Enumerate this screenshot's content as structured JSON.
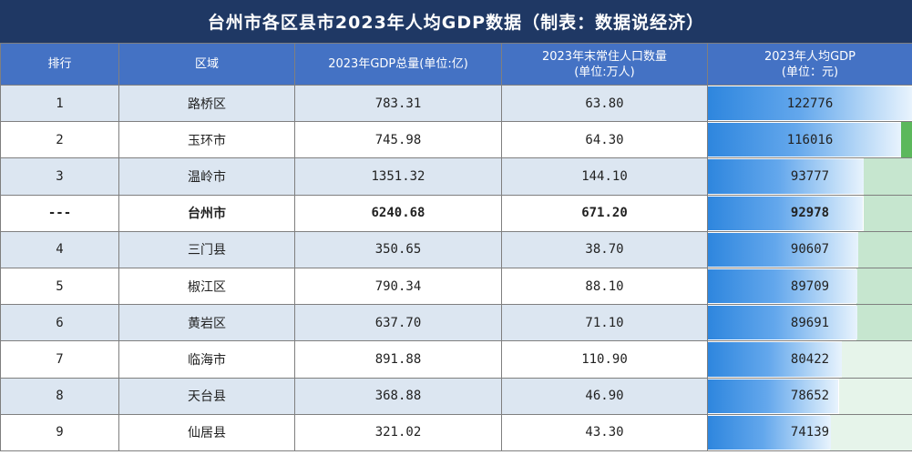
{
  "title": "台州市各区县市2023年人均GDP数据（制表：数据说经济）",
  "headers": {
    "rank": "排行",
    "region": "区域",
    "gdp": "2023年GDP总量(单位:亿)",
    "pop_line1": "2023年末常住人口数量",
    "pop_line2": "(单位:万人)",
    "pcgdp_line1": "2023年人均GDP",
    "pcgdp_line2": "(单位：元)"
  },
  "rows": [
    {
      "rank": "1",
      "region": "路桥区",
      "gdp": "783.31",
      "pop": "63.80",
      "pcgdp": "122776"
    },
    {
      "rank": "2",
      "region": "玉环市",
      "gdp": "745.98",
      "pop": "64.30",
      "pcgdp": "116016"
    },
    {
      "rank": "3",
      "region": "温岭市",
      "gdp": "1351.32",
      "pop": "144.10",
      "pcgdp": "93777"
    },
    {
      "rank": "---",
      "region": "台州市",
      "gdp": "6240.68",
      "pop": "671.20",
      "pcgdp": "92978"
    },
    {
      "rank": "4",
      "region": "三门县",
      "gdp": "350.65",
      "pop": "38.70",
      "pcgdp": "90607"
    },
    {
      "rank": "5",
      "region": "椒江区",
      "gdp": "790.34",
      "pop": "88.10",
      "pcgdp": "89709"
    },
    {
      "rank": "6",
      "region": "黄岩区",
      "gdp": "637.70",
      "pop": "71.10",
      "pcgdp": "89691"
    },
    {
      "rank": "7",
      "region": "临海市",
      "gdp": "891.88",
      "pop": "110.90",
      "pcgdp": "80422"
    },
    {
      "rank": "8",
      "region": "天台县",
      "gdp": "368.88",
      "pop": "46.90",
      "pcgdp": "78652"
    },
    {
      "rank": "9",
      "region": "仙居县",
      "gdp": "321.02",
      "pop": "43.30",
      "pcgdp": "74139"
    }
  ],
  "bar_max": 122776,
  "colors": {
    "header_bg": "#4472c4",
    "title_bg": "#1f3864",
    "bar": "#2e86de",
    "band_green": "#c6e6cf"
  }
}
